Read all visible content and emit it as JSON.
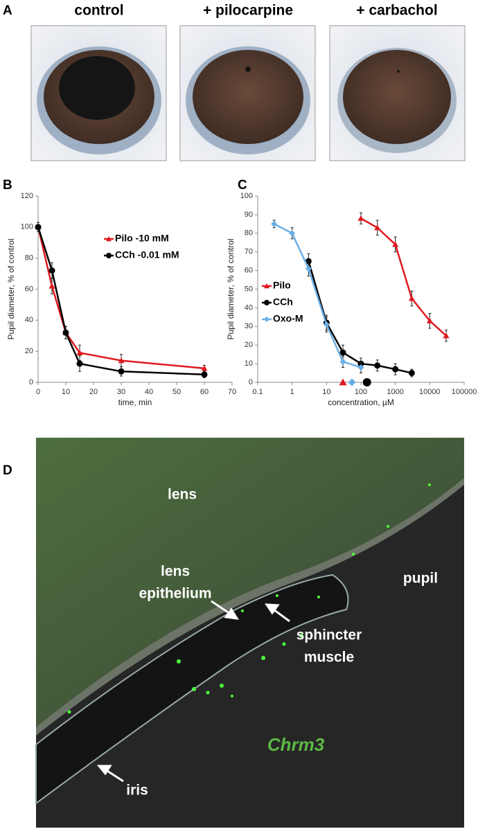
{
  "panels": {
    "a": "A",
    "b": "B",
    "c": "C",
    "d": "D"
  },
  "photos": [
    "control",
    "+ pilocarpine",
    "+ carbachol"
  ],
  "chart_data": [
    {
      "type": "line",
      "xlabel": "time, min",
      "ylabel": "Pupil diameter, % of control",
      "x": [
        0,
        5,
        10,
        15,
        30,
        60
      ],
      "xlim": [
        0,
        70
      ],
      "xticks": [
        0,
        10,
        20,
        30,
        40,
        50,
        60,
        70
      ],
      "ylim": [
        0,
        120
      ],
      "yticks": [
        0,
        20,
        40,
        60,
        80,
        100,
        120
      ],
      "legend": "center-right",
      "grid": false,
      "series": [
        {
          "name": "Pilo -10 mM",
          "color": "#e0191f",
          "marker": "triangle",
          "values": [
            100,
            62,
            32,
            19,
            14,
            9
          ],
          "errors": [
            3,
            5,
            4,
            5,
            4,
            2
          ]
        },
        {
          "name": "CCh -0.01 mM",
          "color": "#000000",
          "marker": "circle",
          "values": [
            100,
            72,
            32,
            12,
            7,
            5
          ],
          "errors": [
            3,
            5,
            4,
            5,
            3,
            2
          ]
        }
      ]
    },
    {
      "type": "line",
      "xlabel": "concentration, µM",
      "ylabel": "Pupil diameter, % of control",
      "xscale": "log",
      "xlim": [
        0.1,
        100000
      ],
      "xticks": [
        0.1,
        1,
        10,
        100,
        1000,
        10000,
        100000
      ],
      "ylim": [
        0,
        100
      ],
      "yticks": [
        0,
        10,
        20,
        30,
        40,
        50,
        60,
        70,
        80,
        90,
        100
      ],
      "legend": "center-left",
      "grid": false,
      "series": [
        {
          "name": "Pilo",
          "color": "#e0191f",
          "marker": "triangle",
          "x": [
            100,
            300,
            1000,
            3000,
            10000,
            30000
          ],
          "values": [
            88,
            83,
            74,
            45,
            33,
            25
          ],
          "errors": [
            3,
            4,
            4,
            4,
            4,
            3
          ],
          "baseline_marker_x": 30
        },
        {
          "name": "CCh",
          "color": "#000000",
          "marker": "circle",
          "x": [
            3,
            10,
            30,
            100,
            300,
            1000,
            3000
          ],
          "values": [
            65,
            32,
            16,
            10,
            9,
            7,
            5
          ],
          "errors": [
            4,
            4,
            4,
            3,
            3,
            3,
            2
          ],
          "baseline_marker_x": 150
        },
        {
          "name": "Oxo-M",
          "color": "#6aaee6",
          "marker": "diamond",
          "x": [
            0.3,
            1,
            3,
            10,
            30,
            100
          ],
          "values": [
            85,
            80,
            61,
            31,
            11,
            8
          ],
          "errors": [
            2,
            3,
            4,
            4,
            3,
            3
          ],
          "baseline_marker_x": 55
        }
      ]
    }
  ],
  "micrograph": {
    "lens": "lens",
    "pupil": "pupil",
    "lens_epithelium": [
      "lens",
      "epithelium"
    ],
    "sphincter": [
      "sphincter",
      "muscle"
    ],
    "iris": "iris",
    "gene": "Chrm3"
  }
}
